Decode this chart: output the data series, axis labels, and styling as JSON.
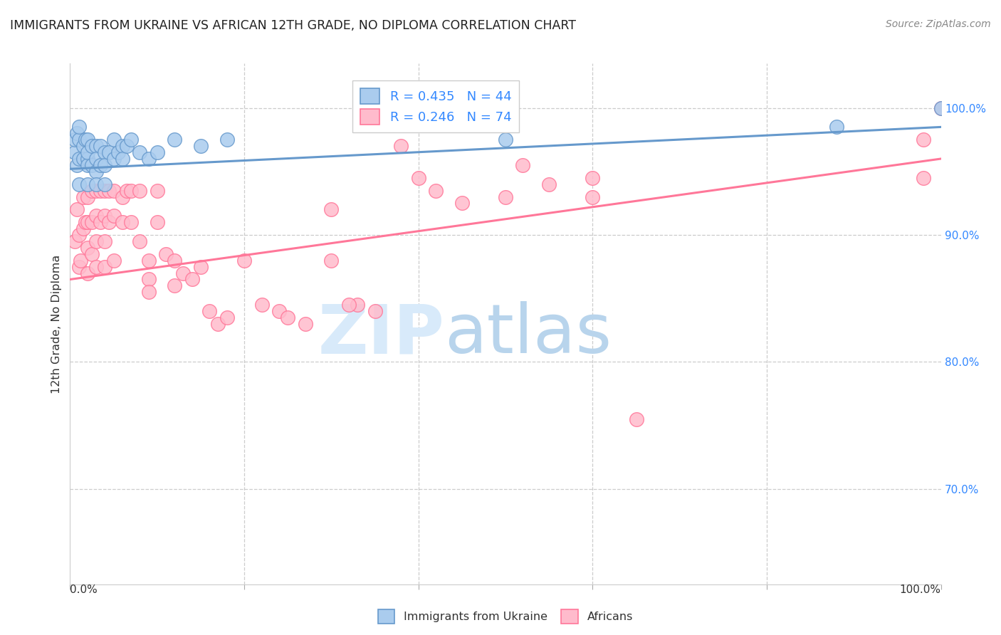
{
  "title": "IMMIGRANTS FROM UKRAINE VS AFRICAN 12TH GRADE, NO DIPLOMA CORRELATION CHART",
  "source_text": "Source: ZipAtlas.com",
  "ylabel": "12th Grade, No Diploma",
  "xlim": [
    0.0,
    1.0
  ],
  "ylim": [
    0.625,
    1.035
  ],
  "yticks": [
    0.7,
    0.8,
    0.9,
    1.0
  ],
  "ytick_labels": [
    "70.0%",
    "80.0%",
    "90.0%",
    "100.0%"
  ],
  "ukraine_color": "#6699CC",
  "ukraine_color_fill": "#AACCEE",
  "african_color": "#FF7799",
  "african_color_fill": "#FFBBCC",
  "ukraine_R": 0.435,
  "ukraine_N": 44,
  "african_R": 0.246,
  "african_N": 74,
  "legend_label_ukraine": "Immigrants from Ukraine",
  "legend_label_african": "Africans",
  "ukraine_line_x": [
    0.0,
    1.0
  ],
  "ukraine_line_y": [
    0.952,
    0.985
  ],
  "african_line_x": [
    0.0,
    1.0
  ],
  "african_line_y": [
    0.865,
    0.96
  ],
  "ukraine_x": [
    0.005,
    0.005,
    0.008,
    0.008,
    0.01,
    0.01,
    0.01,
    0.01,
    0.015,
    0.015,
    0.018,
    0.02,
    0.02,
    0.02,
    0.02,
    0.02,
    0.025,
    0.025,
    0.03,
    0.03,
    0.03,
    0.03,
    0.035,
    0.035,
    0.04,
    0.04,
    0.04,
    0.045,
    0.05,
    0.05,
    0.055,
    0.06,
    0.06,
    0.065,
    0.07,
    0.08,
    0.09,
    0.1,
    0.12,
    0.15,
    0.18,
    0.5,
    0.88,
    1.0
  ],
  "ukraine_y": [
    0.965,
    0.975,
    0.955,
    0.98,
    0.975,
    0.96,
    0.94,
    0.985,
    0.97,
    0.96,
    0.975,
    0.975,
    0.96,
    0.955,
    0.94,
    0.965,
    0.97,
    0.955,
    0.97,
    0.96,
    0.95,
    0.94,
    0.97,
    0.955,
    0.965,
    0.955,
    0.94,
    0.965,
    0.975,
    0.96,
    0.965,
    0.97,
    0.96,
    0.97,
    0.975,
    0.965,
    0.96,
    0.965,
    0.975,
    0.97,
    0.975,
    0.975,
    0.985,
    1.0
  ],
  "african_x": [
    0.005,
    0.008,
    0.01,
    0.01,
    0.012,
    0.015,
    0.015,
    0.018,
    0.02,
    0.02,
    0.02,
    0.02,
    0.025,
    0.025,
    0.025,
    0.03,
    0.03,
    0.03,
    0.03,
    0.035,
    0.035,
    0.04,
    0.04,
    0.04,
    0.04,
    0.045,
    0.045,
    0.05,
    0.05,
    0.05,
    0.06,
    0.06,
    0.065,
    0.07,
    0.07,
    0.08,
    0.08,
    0.09,
    0.09,
    0.09,
    0.1,
    0.1,
    0.11,
    0.12,
    0.12,
    0.13,
    0.14,
    0.15,
    0.16,
    0.17,
    0.18,
    0.2,
    0.22,
    0.24,
    0.25,
    0.27,
    0.3,
    0.33,
    0.35,
    0.38,
    0.4,
    0.42,
    0.45,
    0.5,
    0.52,
    0.55,
    0.6,
    0.65,
    0.6,
    0.98,
    0.98,
    0.3,
    0.32,
    1.0
  ],
  "african_y": [
    0.895,
    0.92,
    0.9,
    0.875,
    0.88,
    0.93,
    0.905,
    0.91,
    0.93,
    0.91,
    0.89,
    0.87,
    0.935,
    0.91,
    0.885,
    0.935,
    0.915,
    0.895,
    0.875,
    0.935,
    0.91,
    0.935,
    0.915,
    0.895,
    0.875,
    0.935,
    0.91,
    0.935,
    0.915,
    0.88,
    0.93,
    0.91,
    0.935,
    0.935,
    0.91,
    0.935,
    0.895,
    0.88,
    0.865,
    0.855,
    0.935,
    0.91,
    0.885,
    0.88,
    0.86,
    0.87,
    0.865,
    0.875,
    0.84,
    0.83,
    0.835,
    0.88,
    0.845,
    0.84,
    0.835,
    0.83,
    0.92,
    0.845,
    0.84,
    0.97,
    0.945,
    0.935,
    0.925,
    0.93,
    0.955,
    0.94,
    0.945,
    0.755,
    0.93,
    0.945,
    0.975,
    0.88,
    0.845,
    1.0
  ]
}
